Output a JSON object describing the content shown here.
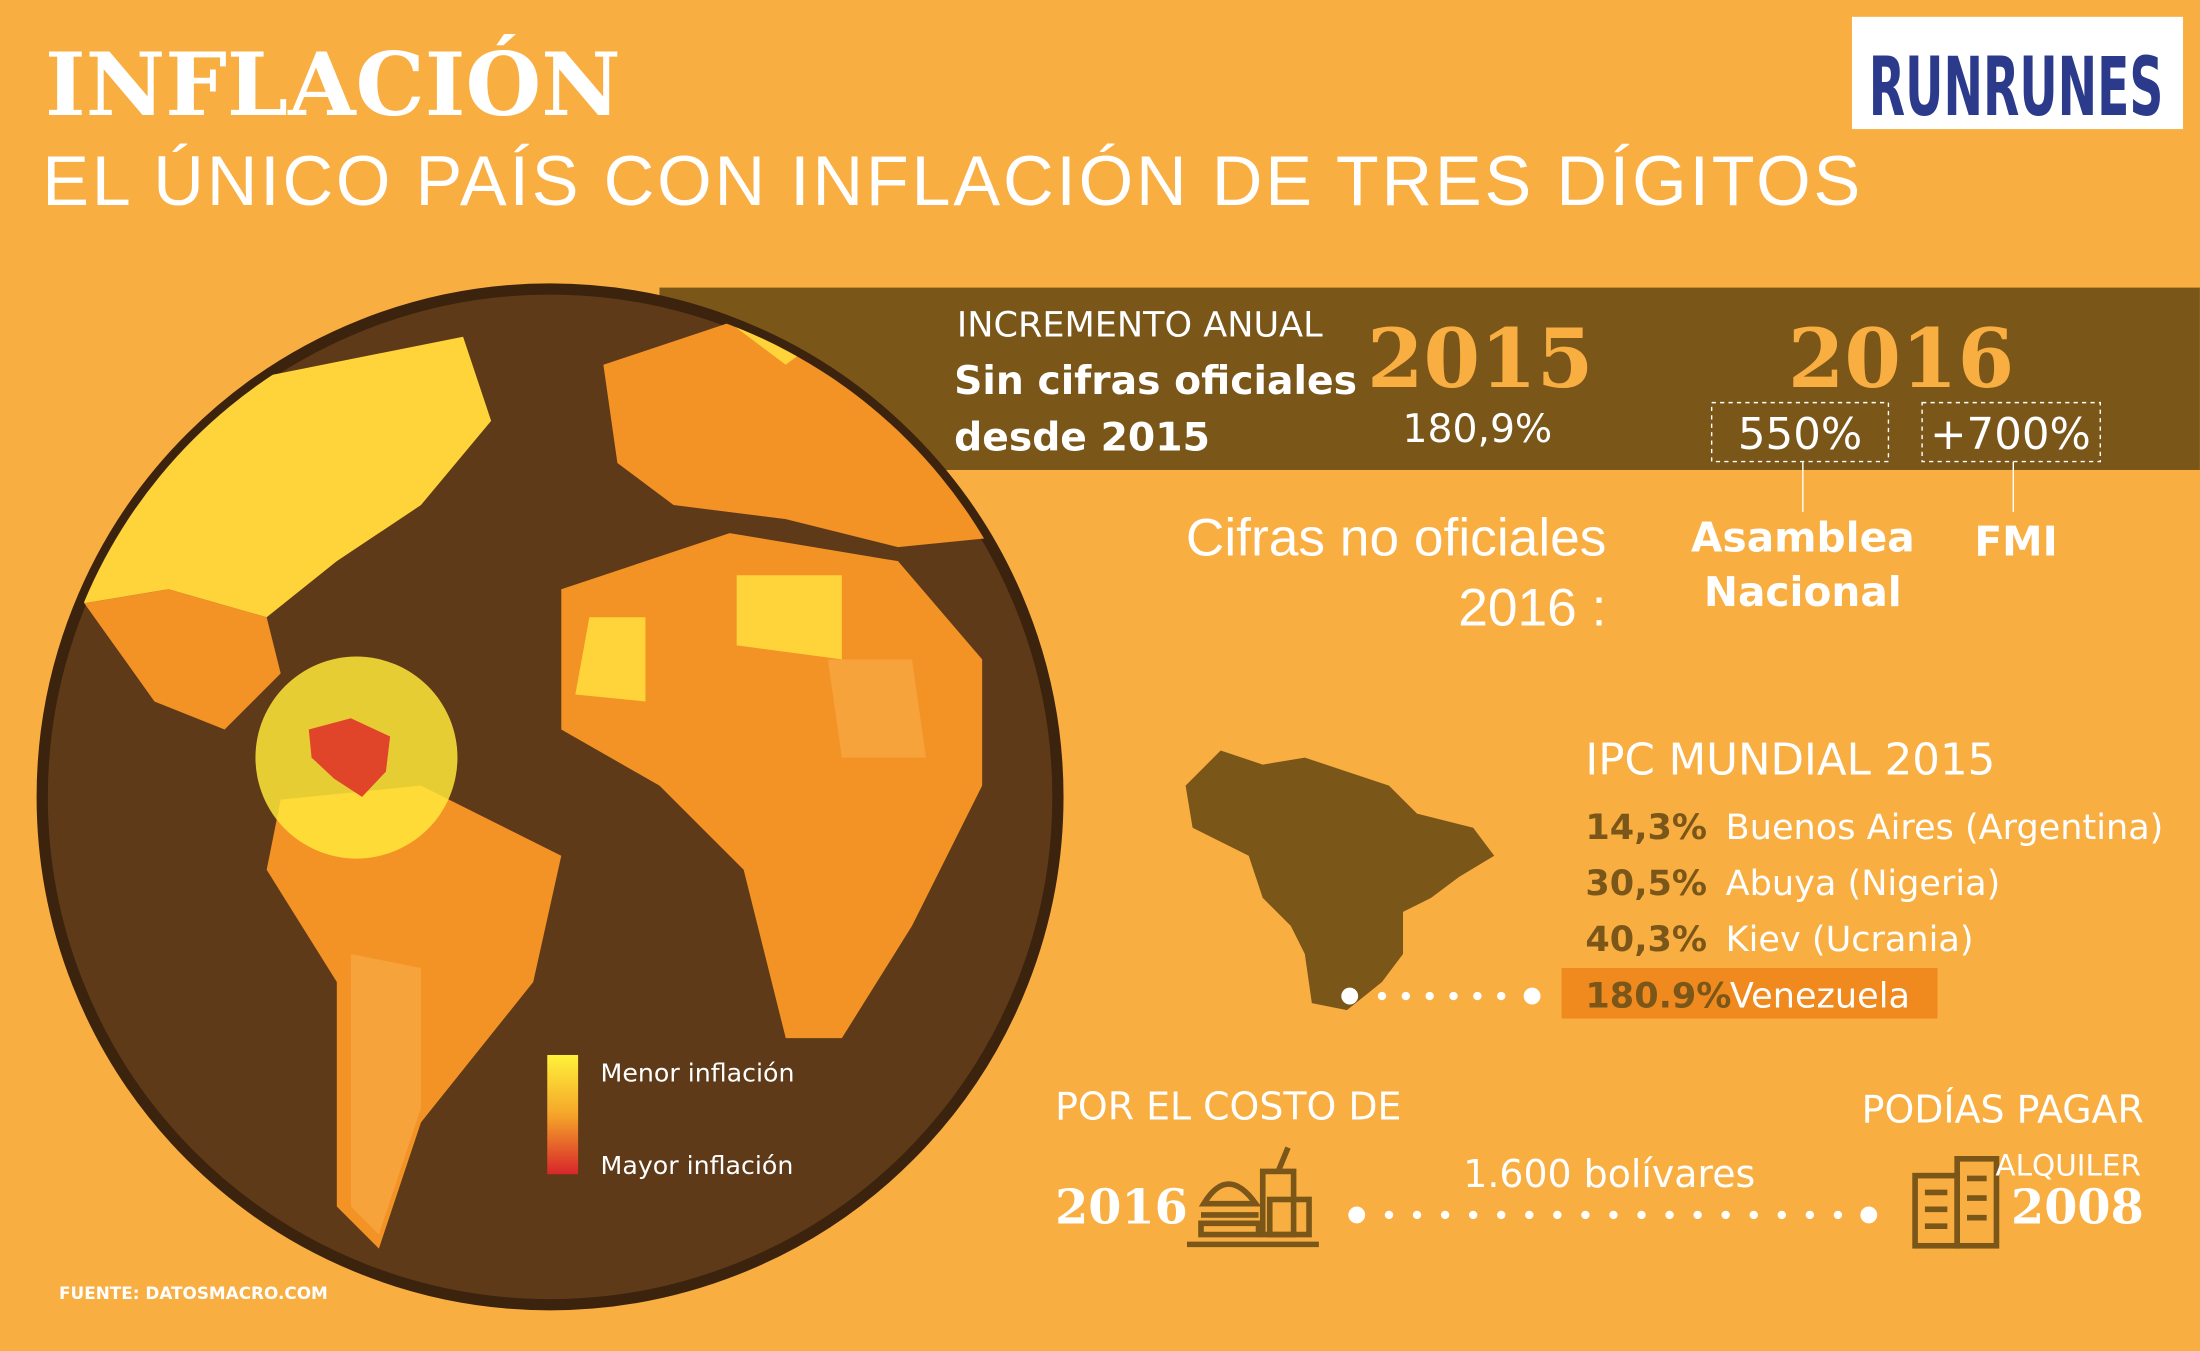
{
  "header": {
    "title": "INFLACIÓN",
    "subtitle": "EL ÚNICO PAÍS CON INFLACIÓN DE TRES DÍGITOS",
    "logo": "RUNRUNES"
  },
  "annual": {
    "label": "INCREMENTO ANUAL",
    "note_lines": [
      "Sin cifras oficiales",
      "desde 2015"
    ],
    "year_2015": "2015",
    "value_2015": "180,9%",
    "year_2016": "2016",
    "estimates": [
      {
        "value": "550%",
        "source_lines": [
          "Asamblea",
          "Nacional"
        ]
      },
      {
        "value": "+700%",
        "source_lines": [
          "FMI"
        ]
      }
    ],
    "unofficial_lines": [
      "Cifras no oficiales",
      "2016 :"
    ]
  },
  "ipc": {
    "title": "IPC MUNDIAL 2015",
    "rows": [
      {
        "value": "14,3%",
        "city": "Buenos Aires (Argentina)"
      },
      {
        "value": "30,5%",
        "city": "Abuya (Nigeria)"
      },
      {
        "value": "40,3%",
        "city": "Kiev (Ucrania)"
      },
      {
        "value": "180.9%",
        "city": "Venezuela"
      }
    ]
  },
  "legend": [
    "Menor inflación",
    "Mayor inflación"
  ],
  "cost": {
    "left_label": "POR EL COSTO DE",
    "left_year": "2016",
    "amount": "1.600 bolívares",
    "right_label": "PODÍAS PAGAR",
    "right_item": "ALQUILER",
    "right_year": "2008"
  },
  "source": "FUENTE: DATOSMACRO.COM"
}
